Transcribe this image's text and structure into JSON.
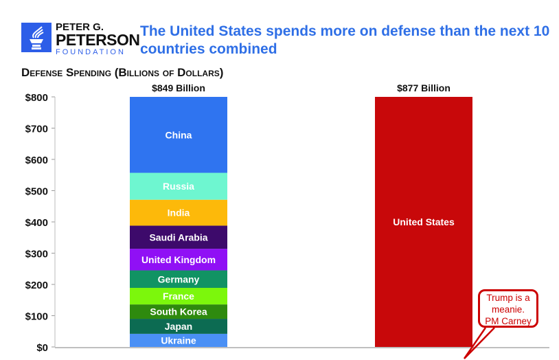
{
  "org": {
    "line1": "PETER G.",
    "line2": "PETERSON",
    "line3": "FOUNDATION"
  },
  "title": "The United States spends more on defense than the next 10 countries combined",
  "chart_data": {
    "type": "bar",
    "stacked": true,
    "title": "The United States spends more on defense than the next 10 countries combined",
    "ylabel": "Defense Spending (Billions of Dollars)",
    "ylim": [
      0,
      800
    ],
    "yticks": [
      "$0",
      "$100",
      "$200",
      "$300",
      "$400",
      "$500",
      "$600",
      "$700",
      "$800"
    ],
    "bars": [
      {
        "total_label": "$849 Billion",
        "segments": [
          {
            "name": "Ukraine",
            "value": 42,
            "color": "#4a90f5"
          },
          {
            "name": "Japan",
            "value": 48,
            "color": "#0c6b52"
          },
          {
            "name": "South Korea",
            "value": 46,
            "color": "#2e8a0e"
          },
          {
            "name": "France",
            "value": 53,
            "color": "#7cf70c"
          },
          {
            "name": "Germany",
            "value": 56,
            "color": "#119363"
          },
          {
            "name": "United Kingdom",
            "value": 69,
            "color": "#9010f5"
          },
          {
            "name": "Saudi Arabia",
            "value": 74,
            "color": "#3d0a6b"
          },
          {
            "name": "India",
            "value": 83,
            "color": "#fdb90a"
          },
          {
            "name": "Russia",
            "value": 86,
            "color": "#6ef6d0"
          },
          {
            "name": "China",
            "value": 292,
            "color": "#2f74f0"
          }
        ]
      },
      {
        "total_label": "$877 Billion",
        "segments": [
          {
            "name": "United States",
            "value": 877,
            "color": "#c8080a"
          }
        ]
      }
    ]
  },
  "annotation": {
    "line1": "Trump is a",
    "line2": "meanie.",
    "line3": "PM Carney"
  }
}
